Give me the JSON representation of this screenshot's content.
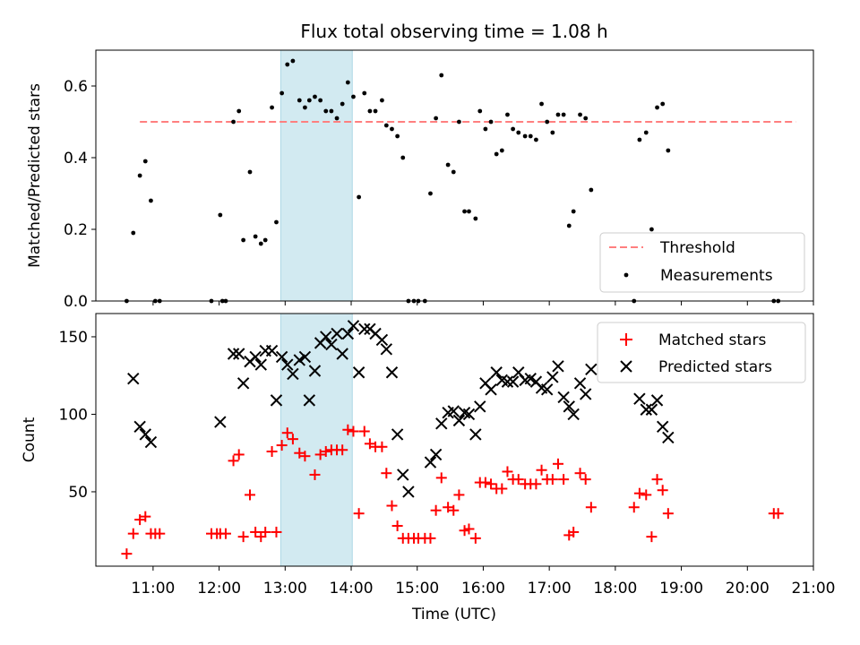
{
  "chart_data": [
    {
      "type": "scatter",
      "title": "Flux total observing time = 1.08 h",
      "xlabel": "",
      "ylabel": "Matched/Predicted stars",
      "xlim": [
        "10:08",
        "21:00"
      ],
      "ylim": [
        0,
        0.7
      ],
      "yticks": [
        "0.0",
        "0.2",
        "0.4",
        "0.6"
      ],
      "shaded_span": [
        "12:56",
        "14:01"
      ],
      "shaded_color": "#add8e6",
      "legend_position": "lower-right",
      "threshold": {
        "name": "Threshold",
        "y": 0.5,
        "x_start": "10:48",
        "x_end": "20:44",
        "color": "#ff7f7f"
      },
      "series": [
        {
          "name": "Measurements",
          "color": "#000000",
          "marker": "dot",
          "points": [
            [
              "10:36",
              0.0
            ],
            [
              "10:42",
              0.19
            ],
            [
              "10:48",
              0.35
            ],
            [
              "10:53",
              0.39
            ],
            [
              "10:58",
              0.28
            ],
            [
              "11:02",
              0.0
            ],
            [
              "11:06",
              0.0
            ],
            [
              "11:53",
              0.0
            ],
            [
              "12:01",
              0.24
            ],
            [
              "12:03",
              0.0
            ],
            [
              "12:06",
              0.0
            ],
            [
              "12:13",
              0.5
            ],
            [
              "12:18",
              0.53
            ],
            [
              "12:22",
              0.17
            ],
            [
              "12:28",
              0.36
            ],
            [
              "12:33",
              0.18
            ],
            [
              "12:38",
              0.16
            ],
            [
              "12:42",
              0.17
            ],
            [
              "12:48",
              0.54
            ],
            [
              "12:52",
              0.22
            ],
            [
              "12:57",
              0.58
            ],
            [
              "13:02",
              0.66
            ],
            [
              "13:07",
              0.67
            ],
            [
              "13:13",
              0.56
            ],
            [
              "13:18",
              0.54
            ],
            [
              "13:22",
              0.56
            ],
            [
              "13:27",
              0.57
            ],
            [
              "13:32",
              0.56
            ],
            [
              "13:37",
              0.53
            ],
            [
              "13:42",
              0.53
            ],
            [
              "13:47",
              0.51
            ],
            [
              "13:52",
              0.55
            ],
            [
              "13:57",
              0.61
            ],
            [
              "14:02",
              0.57
            ],
            [
              "14:07",
              0.29
            ],
            [
              "14:12",
              0.58
            ],
            [
              "14:17",
              0.53
            ],
            [
              "14:22",
              0.53
            ],
            [
              "14:28",
              0.56
            ],
            [
              "14:32",
              0.49
            ],
            [
              "14:37",
              0.48
            ],
            [
              "14:42",
              0.46
            ],
            [
              "14:47",
              0.4
            ],
            [
              "14:52",
              0.0
            ],
            [
              "14:57",
              0.0
            ],
            [
              "15:01",
              0.0
            ],
            [
              "15:07",
              0.0
            ],
            [
              "15:12",
              0.3
            ],
            [
              "15:17",
              0.51
            ],
            [
              "15:22",
              0.63
            ],
            [
              "15:28",
              0.38
            ],
            [
              "15:33",
              0.36
            ],
            [
              "15:38",
              0.5
            ],
            [
              "15:43",
              0.25
            ],
            [
              "15:47",
              0.25
            ],
            [
              "15:53",
              0.23
            ],
            [
              "15:57",
              0.53
            ],
            [
              "16:02",
              0.48
            ],
            [
              "16:07",
              0.5
            ],
            [
              "16:12",
              0.41
            ],
            [
              "16:17",
              0.42
            ],
            [
              "16:22",
              0.52
            ],
            [
              "16:27",
              0.48
            ],
            [
              "16:32",
              0.47
            ],
            [
              "16:38",
              0.46
            ],
            [
              "16:43",
              0.46
            ],
            [
              "16:48",
              0.45
            ],
            [
              "16:53",
              0.55
            ],
            [
              "16:58",
              0.5
            ],
            [
              "17:03",
              0.47
            ],
            [
              "17:08",
              0.52
            ],
            [
              "17:13",
              0.52
            ],
            [
              "17:18",
              0.21
            ],
            [
              "17:22",
              0.25
            ],
            [
              "17:28",
              0.52
            ],
            [
              "17:33",
              0.51
            ],
            [
              "17:38",
              0.31
            ],
            [
              "18:17",
              0.0
            ],
            [
              "18:22",
              0.45
            ],
            [
              "18:28",
              0.47
            ],
            [
              "18:33",
              0.2
            ],
            [
              "18:38",
              0.54
            ],
            [
              "18:43",
              0.55
            ],
            [
              "18:48",
              0.42
            ],
            [
              "20:24",
              0.0
            ],
            [
              "20:28",
              0.0
            ]
          ]
        }
      ]
    },
    {
      "type": "scatter",
      "title": "",
      "xlabel": "Time (UTC)",
      "ylabel": "Count",
      "xlim": [
        "10:08",
        "21:00"
      ],
      "ylim": [
        2,
        165
      ],
      "yticks": [
        "50",
        "100",
        "150"
      ],
      "xticks": [
        "11:00",
        "12:00",
        "13:00",
        "14:00",
        "15:00",
        "16:00",
        "17:00",
        "18:00",
        "19:00",
        "20:00",
        "21:00"
      ],
      "shaded_span": [
        "12:56",
        "14:01"
      ],
      "shaded_color": "#add8e6",
      "legend_position": "upper-right",
      "series": [
        {
          "name": "Matched stars",
          "color": "#ff0000",
          "marker": "plus",
          "points": [
            [
              "10:36",
              10
            ],
            [
              "10:42",
              23
            ],
            [
              "10:48",
              32
            ],
            [
              "10:53",
              34
            ],
            [
              "10:58",
              23
            ],
            [
              "11:02",
              23
            ],
            [
              "11:06",
              23
            ],
            [
              "11:53",
              23
            ],
            [
              "11:58",
              23
            ],
            [
              "12:01",
              23
            ],
            [
              "12:06",
              23
            ],
            [
              "12:13",
              70
            ],
            [
              "12:18",
              74
            ],
            [
              "12:22",
              21
            ],
            [
              "12:28",
              48
            ],
            [
              "12:33",
              24
            ],
            [
              "12:38",
              21
            ],
            [
              "12:42",
              24
            ],
            [
              "12:48",
              76
            ],
            [
              "12:52",
              24
            ],
            [
              "12:57",
              80
            ],
            [
              "13:02",
              88
            ],
            [
              "13:07",
              84
            ],
            [
              "13:13",
              75
            ],
            [
              "13:18",
              73
            ],
            [
              "13:27",
              61
            ],
            [
              "13:32",
              74
            ],
            [
              "13:37",
              76
            ],
            [
              "13:42",
              77
            ],
            [
              "13:47",
              77
            ],
            [
              "13:52",
              77
            ],
            [
              "13:57",
              90
            ],
            [
              "14:02",
              89
            ],
            [
              "14:07",
              36
            ],
            [
              "14:12",
              89
            ],
            [
              "14:17",
              81
            ],
            [
              "14:22",
              79
            ],
            [
              "14:28",
              79
            ],
            [
              "14:32",
              62
            ],
            [
              "14:37",
              41
            ],
            [
              "14:42",
              28
            ],
            [
              "14:47",
              20
            ],
            [
              "14:52",
              20
            ],
            [
              "14:57",
              20
            ],
            [
              "15:01",
              20
            ],
            [
              "15:07",
              20
            ],
            [
              "15:12",
              20
            ],
            [
              "15:17",
              38
            ],
            [
              "15:22",
              59
            ],
            [
              "15:28",
              40
            ],
            [
              "15:33",
              38
            ],
            [
              "15:38",
              48
            ],
            [
              "15:43",
              25
            ],
            [
              "15:47",
              26
            ],
            [
              "15:53",
              20
            ],
            [
              "15:57",
              56
            ],
            [
              "16:02",
              56
            ],
            [
              "16:07",
              55
            ],
            [
              "16:12",
              52
            ],
            [
              "16:17",
              52
            ],
            [
              "16:22",
              63
            ],
            [
              "16:27",
              58
            ],
            [
              "16:32",
              58
            ],
            [
              "16:38",
              55
            ],
            [
              "16:43",
              55
            ],
            [
              "16:48",
              55
            ],
            [
              "16:53",
              64
            ],
            [
              "16:58",
              58
            ],
            [
              "17:03",
              58
            ],
            [
              "17:08",
              68
            ],
            [
              "17:13",
              58
            ],
            [
              "17:18",
              22
            ],
            [
              "17:22",
              24
            ],
            [
              "17:28",
              62
            ],
            [
              "17:33",
              58
            ],
            [
              "17:38",
              40
            ],
            [
              "18:17",
              40
            ],
            [
              "18:22",
              49
            ],
            [
              "18:28",
              48
            ],
            [
              "18:33",
              21
            ],
            [
              "18:38",
              58
            ],
            [
              "18:43",
              51
            ],
            [
              "18:48",
              36
            ],
            [
              "20:24",
              36
            ],
            [
              "20:28",
              36
            ]
          ]
        },
        {
          "name": "Predicted stars",
          "color": "#000000",
          "marker": "x",
          "points": [
            [
              "10:42",
              123
            ],
            [
              "10:48",
              92
            ],
            [
              "10:53",
              87
            ],
            [
              "10:58",
              82
            ],
            [
              "12:01",
              95
            ],
            [
              "12:13",
              139
            ],
            [
              "12:18",
              139
            ],
            [
              "12:22",
              120
            ],
            [
              "12:28",
              134
            ],
            [
              "12:33",
              137
            ],
            [
              "12:38",
              132
            ],
            [
              "12:42",
              141
            ],
            [
              "12:48",
              141
            ],
            [
              "12:52",
              109
            ],
            [
              "12:57",
              137
            ],
            [
              "13:02",
              132
            ],
            [
              "13:07",
              126
            ],
            [
              "13:13",
              135
            ],
            [
              "13:18",
              137
            ],
            [
              "13:22",
              109
            ],
            [
              "13:27",
              128
            ],
            [
              "13:32",
              146
            ],
            [
              "13:37",
              150
            ],
            [
              "13:42",
              145
            ],
            [
              "13:47",
              152
            ],
            [
              "13:52",
              139
            ],
            [
              "13:57",
              152
            ],
            [
              "14:02",
              157
            ],
            [
              "14:07",
              127
            ],
            [
              "14:12",
              155
            ],
            [
              "14:17",
              155
            ],
            [
              "14:22",
              152
            ],
            [
              "14:28",
              148
            ],
            [
              "14:32",
              142
            ],
            [
              "14:37",
              127
            ],
            [
              "14:42",
              87
            ],
            [
              "14:47",
              61
            ],
            [
              "14:52",
              50
            ],
            [
              "15:12",
              69
            ],
            [
              "15:17",
              74
            ],
            [
              "15:22",
              94
            ],
            [
              "15:28",
              101
            ],
            [
              "15:33",
              102
            ],
            [
              "15:38",
              96
            ],
            [
              "15:43",
              101
            ],
            [
              "15:47",
              100
            ],
            [
              "15:53",
              87
            ],
            [
              "15:57",
              105
            ],
            [
              "16:02",
              120
            ],
            [
              "16:07",
              116
            ],
            [
              "16:12",
              127
            ],
            [
              "16:17",
              122
            ],
            [
              "16:22",
              121
            ],
            [
              "16:27",
              121
            ],
            [
              "16:32",
              127
            ],
            [
              "16:38",
              122
            ],
            [
              "16:43",
              123
            ],
            [
              "16:48",
              121
            ],
            [
              "16:53",
              117
            ],
            [
              "16:58",
              116
            ],
            [
              "17:03",
              124
            ],
            [
              "17:08",
              131
            ],
            [
              "17:13",
              111
            ],
            [
              "17:18",
              105
            ],
            [
              "17:22",
              100
            ],
            [
              "17:28",
              120
            ],
            [
              "17:33",
              113
            ],
            [
              "17:38",
              129
            ],
            [
              "18:22",
              110
            ],
            [
              "18:28",
              103
            ],
            [
              "18:33",
              103
            ],
            [
              "18:38",
              109
            ],
            [
              "18:43",
              92
            ],
            [
              "18:48",
              85
            ]
          ]
        }
      ]
    }
  ]
}
